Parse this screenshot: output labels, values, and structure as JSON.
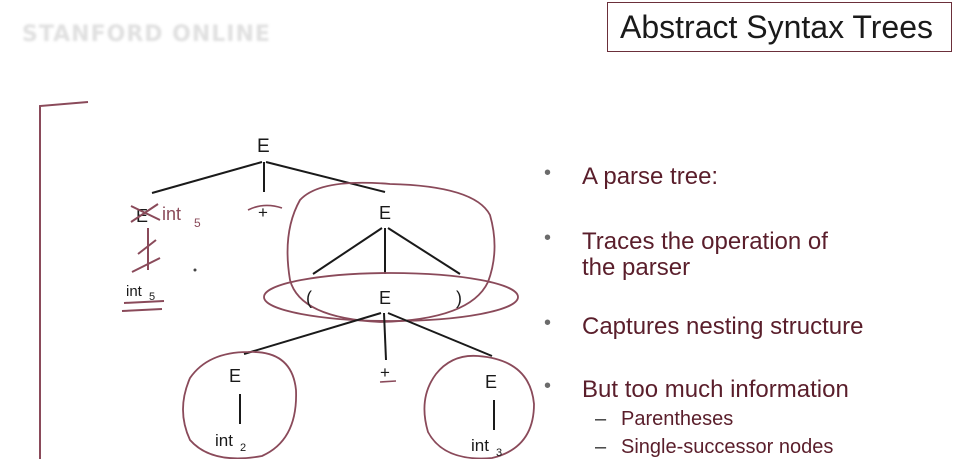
{
  "slide": {
    "logo_text": "STANFORD ONLINE",
    "title": "Abstract Syntax Trees"
  },
  "bullets": [
    {
      "line1": "A parse tree:",
      "line2": ""
    },
    {
      "line1": "Traces the operation of",
      "line2": "the parser"
    },
    {
      "line1": "Captures nesting structure",
      "line2": ""
    },
    {
      "line1": "But too much information",
      "line2": ""
    }
  ],
  "subbullets": [
    "Parentheses",
    "Single-successor nodes"
  ],
  "tree": {
    "root": "E",
    "left_child": "E",
    "left_leaf": "int5",
    "plus_top": "+",
    "right_child": "E",
    "lparen": "(",
    "mid_e": "E",
    "rparen": ")",
    "bottom_left_e": "E",
    "bottom_plus": "+",
    "bottom_right_e": "E",
    "int2": "int2",
    "int3": "int3"
  },
  "colors": {
    "ink": "#1a1a1a",
    "annotation": "#8a4a5a",
    "bullet_text": "#5a1e2b",
    "title_border": "#6b2f3a"
  }
}
